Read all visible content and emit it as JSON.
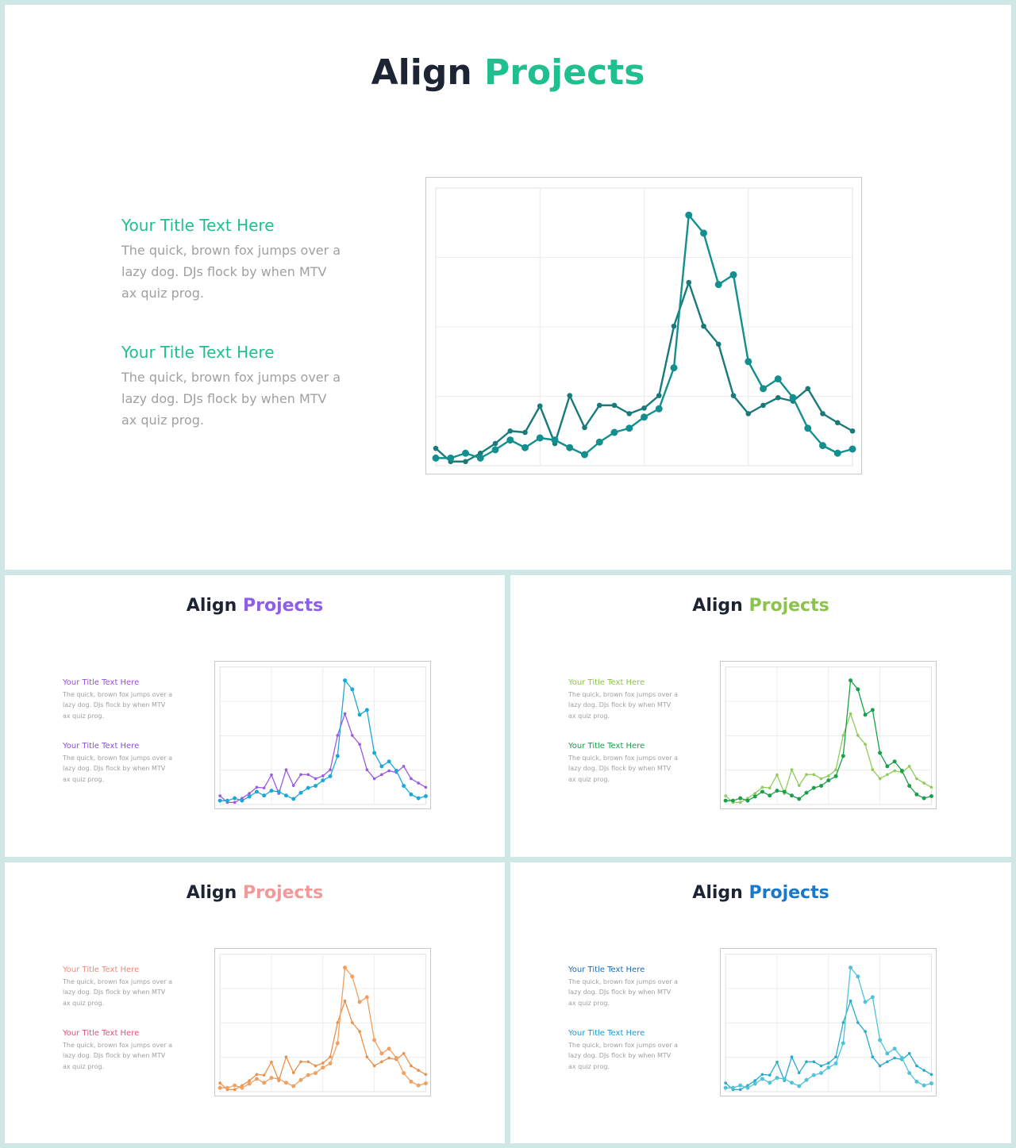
{
  "slides": [
    {
      "title_left": "Align",
      "title_right": "Projects",
      "title_color": "#1fbf8f",
      "blocks": [
        {
          "heading": "Your Title Text Here",
          "color": "#1fbf8f",
          "body": "The quick, brown fox jumps over a lazy dog. DJs flock by when MTV ax quiz prog."
        },
        {
          "heading": "Your Title Text Here",
          "color": "#1fbf8f",
          "body": "The quick, brown fox jumps over a lazy dog. DJs flock by when MTV ax quiz prog."
        }
      ]
    },
    {
      "title_left": "Align",
      "title_right": "Projects",
      "title_color": "#8f5ee8",
      "blocks": [
        {
          "heading": "Your Title Text Here",
          "color": "#9b4fd0",
          "body": "The quick, brown fox jumps over a lazy dog. DJs flock by when MTV ax quiz prog."
        },
        {
          "heading": "Your Title Text Here",
          "color": "#8a4fd0",
          "body": "The quick, brown fox jumps over a lazy dog. DJs flock by when MTV ax quiz prog."
        }
      ]
    },
    {
      "title_left": "Align",
      "title_right": "Projects",
      "title_color": "#8cc34a",
      "blocks": [
        {
          "heading": "Your Title Text Here",
          "color": "#8cc34a",
          "body": "The quick, brown fox jumps over a lazy dog. DJs flock by when MTV ax quiz prog."
        },
        {
          "heading": "Your Title Text Here",
          "color": "#1a9a4a",
          "body": "The quick, brown fox jumps over a lazy dog. DJs flock by when MTV ax quiz prog."
        }
      ]
    },
    {
      "title_left": "Align",
      "title_right": "Projects",
      "title_color": "#f29a9a",
      "blocks": [
        {
          "heading": "Your Title Text Here",
          "color": "#f08a80",
          "body": "The quick, brown fox jumps over a lazy dog. DJs flock by when MTV ax quiz prog."
        },
        {
          "heading": "Your Title Text Here",
          "color": "#e2507a",
          "body": "The quick, brown fox jumps over a lazy dog. DJs flock by when MTV ax quiz prog."
        }
      ]
    },
    {
      "title_left": "Align",
      "title_right": "Projects",
      "title_color": "#1a78c8",
      "blocks": [
        {
          "heading": "Your Title Text Here",
          "color": "#1a6bb0",
          "body": "The quick, brown fox jumps over a lazy dog. DJs flock by when MTV ax quiz prog."
        },
        {
          "heading": "Your Title Text Here",
          "color": "#1a9ad0",
          "body": "The quick, brown fox jumps over a lazy dog. DJs flock by when MTV ax quiz prog."
        }
      ]
    }
  ],
  "chart_data": [
    {
      "type": "line",
      "ylim": [
        0,
        4
      ],
      "yticks": [
        1,
        2,
        3
      ],
      "grid": true,
      "series": [
        {
          "color": "#148f8f",
          "values": [
            0.11,
            0.11,
            0.18,
            0.11,
            0.23,
            0.37,
            0.26,
            0.4,
            0.37,
            0.26,
            0.16,
            0.34,
            0.48,
            0.54,
            0.7,
            0.82,
            1.41,
            3.61,
            3.35,
            2.61,
            2.75,
            1.5,
            1.11,
            1.25,
            0.98,
            0.54,
            0.29,
            0.18,
            0.24
          ]
        },
        {
          "color": "#1a7a7a",
          "values": [
            0.25,
            0.06,
            0.06,
            0.18,
            0.32,
            0.5,
            0.48,
            0.86,
            0.32,
            1.01,
            0.55,
            0.87,
            0.87,
            0.75,
            0.83,
            1.01,
            2.01,
            2.64,
            2.01,
            1.75,
            1.01,
            0.75,
            0.87,
            0.98,
            0.93,
            1.11,
            0.75,
            0.62,
            0.5
          ]
        }
      ]
    },
    {
      "type": "line",
      "ylim": [
        0,
        4
      ],
      "yticks": [
        1,
        2,
        3
      ],
      "grid": true,
      "series": [
        {
          "color": "#1ba8d6",
          "values": [
            0.11,
            0.11,
            0.18,
            0.11,
            0.23,
            0.37,
            0.26,
            0.4,
            0.37,
            0.26,
            0.16,
            0.34,
            0.48,
            0.54,
            0.7,
            0.82,
            1.41,
            3.61,
            3.35,
            2.61,
            2.75,
            1.5,
            1.11,
            1.25,
            0.98,
            0.54,
            0.29,
            0.18,
            0.24
          ]
        },
        {
          "color": "#9b5be0",
          "values": [
            0.25,
            0.06,
            0.06,
            0.18,
            0.32,
            0.5,
            0.48,
            0.86,
            0.32,
            1.01,
            0.55,
            0.87,
            0.87,
            0.75,
            0.83,
            1.01,
            2.01,
            2.64,
            2.01,
            1.75,
            1.01,
            0.75,
            0.87,
            0.98,
            0.93,
            1.11,
            0.75,
            0.62,
            0.5
          ]
        }
      ]
    },
    {
      "type": "line",
      "ylim": [
        0,
        4
      ],
      "yticks": [
        1,
        2,
        3
      ],
      "grid": true,
      "series": [
        {
          "color": "#1aa04a",
          "values": [
            0.11,
            0.11,
            0.18,
            0.11,
            0.23,
            0.37,
            0.26,
            0.4,
            0.37,
            0.26,
            0.16,
            0.34,
            0.48,
            0.54,
            0.7,
            0.82,
            1.41,
            3.61,
            3.35,
            2.61,
            2.75,
            1.5,
            1.11,
            1.25,
            0.98,
            0.54,
            0.29,
            0.18,
            0.24
          ]
        },
        {
          "color": "#8fcc5a",
          "values": [
            0.25,
            0.06,
            0.06,
            0.18,
            0.32,
            0.5,
            0.48,
            0.86,
            0.32,
            1.01,
            0.55,
            0.87,
            0.87,
            0.75,
            0.83,
            1.01,
            2.01,
            2.64,
            2.01,
            1.75,
            1.01,
            0.75,
            0.87,
            0.98,
            0.93,
            1.11,
            0.75,
            0.62,
            0.5
          ]
        }
      ]
    },
    {
      "type": "line",
      "ylim": [
        0,
        4
      ],
      "yticks": [
        1,
        2,
        3
      ],
      "grid": true,
      "series": [
        {
          "color": "#f0a060",
          "values": [
            0.11,
            0.11,
            0.18,
            0.11,
            0.23,
            0.37,
            0.26,
            0.4,
            0.37,
            0.26,
            0.16,
            0.34,
            0.48,
            0.54,
            0.7,
            0.82,
            1.41,
            3.61,
            3.35,
            2.61,
            2.75,
            1.5,
            1.11,
            1.25,
            0.98,
            0.54,
            0.29,
            0.18,
            0.24
          ]
        },
        {
          "color": "#e8914a",
          "values": [
            0.25,
            0.06,
            0.06,
            0.18,
            0.32,
            0.5,
            0.48,
            0.86,
            0.32,
            1.01,
            0.55,
            0.87,
            0.87,
            0.75,
            0.83,
            1.01,
            2.01,
            2.64,
            2.01,
            1.75,
            1.01,
            0.75,
            0.87,
            0.98,
            0.93,
            1.11,
            0.75,
            0.62,
            0.5
          ]
        }
      ]
    },
    {
      "type": "line",
      "ylim": [
        0,
        4
      ],
      "yticks": [
        1,
        2,
        3
      ],
      "grid": true,
      "series": [
        {
          "color": "#4fc3d9",
          "values": [
            0.11,
            0.11,
            0.18,
            0.11,
            0.23,
            0.37,
            0.26,
            0.4,
            0.37,
            0.26,
            0.16,
            0.34,
            0.48,
            0.54,
            0.7,
            0.82,
            1.41,
            3.61,
            3.35,
            2.61,
            2.75,
            1.5,
            1.11,
            1.25,
            0.98,
            0.54,
            0.29,
            0.18,
            0.24
          ]
        },
        {
          "color": "#2aa9cc",
          "values": [
            0.25,
            0.06,
            0.06,
            0.18,
            0.32,
            0.5,
            0.48,
            0.86,
            0.32,
            1.01,
            0.55,
            0.87,
            0.87,
            0.75,
            0.83,
            1.01,
            2.01,
            2.64,
            2.01,
            1.75,
            1.01,
            0.75,
            0.87,
            0.98,
            0.93,
            1.11,
            0.75,
            0.62,
            0.5
          ]
        }
      ]
    }
  ]
}
